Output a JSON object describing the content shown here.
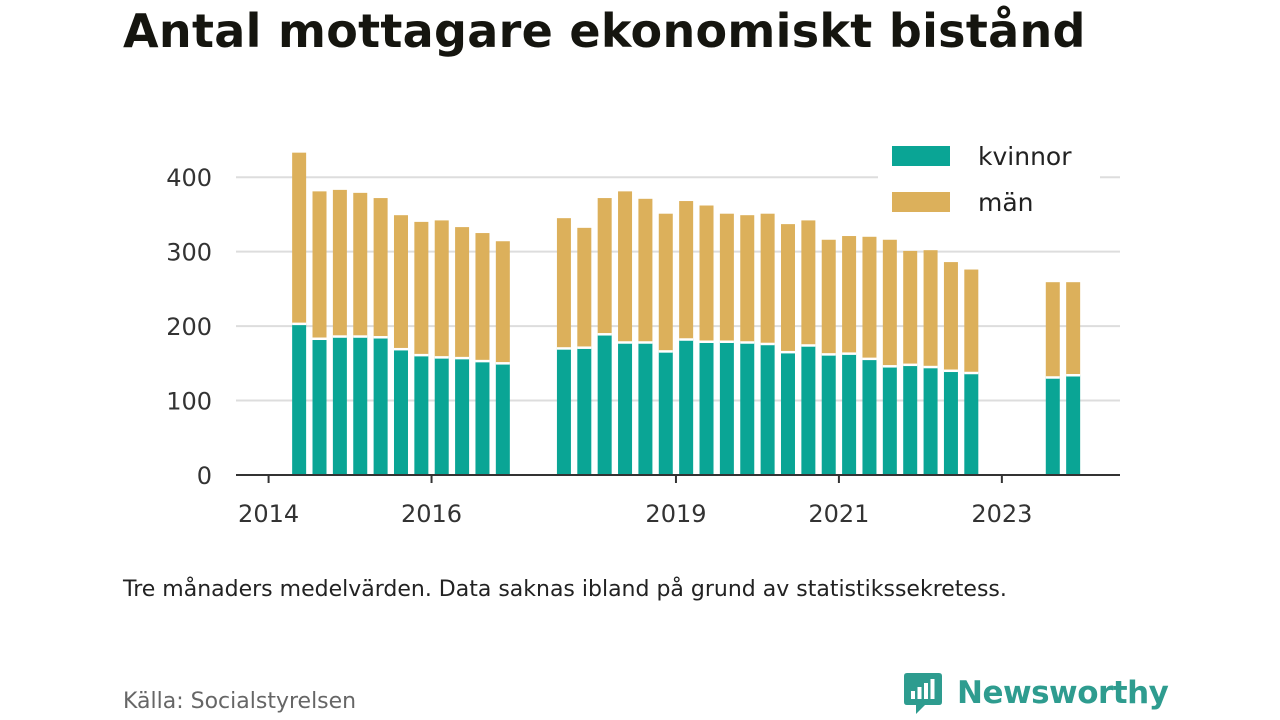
{
  "title": "Antal mottagare ekonomiskt bistånd",
  "note": "Tre månaders medelvärden. Data saknas ibland på grund av statistikssekretess.",
  "source": "Källa: Socialstyrelsen",
  "brand": {
    "name": "Newsworthy",
    "icon": "newsworthy-logo-icon",
    "color": "#2e9c8f"
  },
  "colors": {
    "kvinnor": "#0aa595",
    "man": "#dcb05b",
    "axis": "#333333",
    "grid": "#dddddd"
  },
  "chart_data": {
    "type": "bar",
    "stacked": true,
    "title": "Antal mottagare ekonomiskt bistånd",
    "xlabel": "",
    "ylabel": "",
    "ylim": [
      0,
      450
    ],
    "yticks": [
      0,
      100,
      200,
      300,
      400
    ],
    "xlim": [
      2013.6,
      2024.45
    ],
    "xticks": [
      "2014",
      "2016",
      "2019",
      "2021",
      "2023"
    ],
    "grid": true,
    "legend_position": "top-right",
    "legend": [
      "kvinnor",
      "män"
    ],
    "x": [
      2014.375,
      2014.625,
      2014.875,
      2015.125,
      2015.375,
      2015.625,
      2015.875,
      2016.125,
      2016.375,
      2016.625,
      2016.875,
      2017.625,
      2017.875,
      2018.125,
      2018.375,
      2018.625,
      2018.875,
      2019.125,
      2019.375,
      2019.625,
      2019.875,
      2020.125,
      2020.375,
      2020.625,
      2020.875,
      2021.125,
      2021.375,
      2021.625,
      2021.875,
      2022.125,
      2022.375,
      2022.625,
      2023.625,
      2023.875
    ],
    "series": [
      {
        "name": "kvinnor",
        "values": [
          203,
          183,
          186,
          186,
          185,
          169,
          161,
          158,
          157,
          153,
          150,
          170,
          171,
          189,
          178,
          178,
          166,
          182,
          179,
          179,
          178,
          176,
          165,
          174,
          162,
          163,
          156,
          146,
          148,
          145,
          140,
          137,
          131,
          134
        ]
      },
      {
        "name": "män",
        "values": [
          230,
          198,
          197,
          193,
          187,
          180,
          179,
          184,
          176,
          172,
          164,
          175,
          161,
          183,
          203,
          193,
          185,
          186,
          183,
          172,
          171,
          175,
          172,
          168,
          154,
          158,
          164,
          170,
          153,
          157,
          146,
          139,
          128,
          125
        ]
      }
    ]
  }
}
